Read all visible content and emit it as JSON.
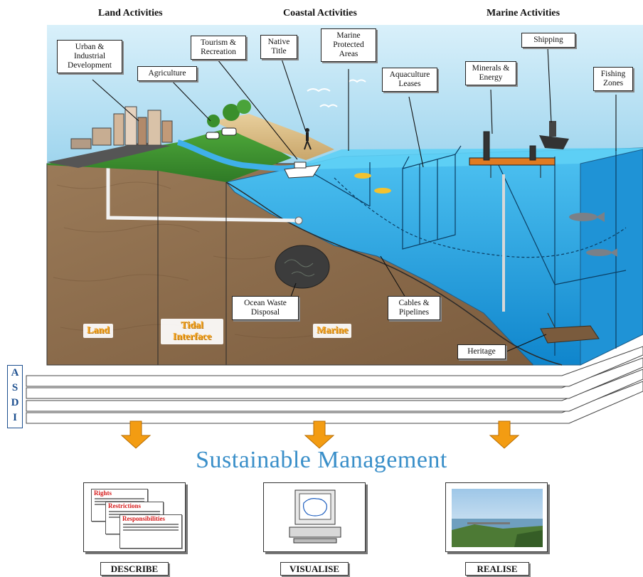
{
  "categories": {
    "land": "Land Activities",
    "coastal": "Coastal Activities",
    "marine": "Marine Activities"
  },
  "labels": {
    "urban": "Urban & Industrial Development",
    "agriculture": "Agriculture",
    "tourism": "Tourism & Recreation",
    "native_title": "Native Title",
    "marine_protected": "Marine Protected Areas",
    "aquaculture": "Aquaculture Leases",
    "minerals": "Minerals & Energy",
    "shipping": "Shipping",
    "fishing": "Fishing Zones",
    "ocean_waste": "Ocean Waste Disposal",
    "cables": "Cables & Pipelines",
    "heritage": "Heritage"
  },
  "zones": {
    "land": "Land",
    "tidal": "Tidal Interface",
    "marine": "Marine"
  },
  "asdi": [
    "A",
    "S",
    "D",
    "I"
  ],
  "heading": "Sustainable Management",
  "describe_docs": {
    "rights": "Rights",
    "restrictions": "Restrictions",
    "responsibilities": "Responsibilities"
  },
  "panels": {
    "describe": "DESCRIBE",
    "visualise": "VISUALISE",
    "realise": "REALISE"
  },
  "colors": {
    "sky": "#bfe3f3",
    "water": "#2fa9e6",
    "earth": "#8a6a4a",
    "zone_text": "#f5a623",
    "heading": "#3a8fc9",
    "arrow": "#f39c12"
  }
}
